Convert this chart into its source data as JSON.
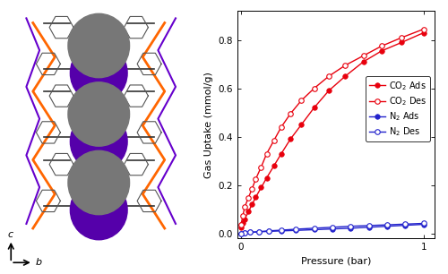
{
  "co2_ads_pressure": [
    0.0,
    0.01,
    0.02,
    0.04,
    0.06,
    0.08,
    0.11,
    0.14,
    0.18,
    0.22,
    0.27,
    0.33,
    0.4,
    0.48,
    0.57,
    0.67,
    0.77,
    0.88,
    1.0
  ],
  "co2_ads_uptake": [
    0.025,
    0.042,
    0.06,
    0.09,
    0.12,
    0.15,
    0.19,
    0.23,
    0.28,
    0.33,
    0.39,
    0.45,
    0.52,
    0.59,
    0.65,
    0.71,
    0.755,
    0.79,
    0.83
  ],
  "co2_des_pressure": [
    1.0,
    0.88,
    0.77,
    0.67,
    0.57,
    0.48,
    0.4,
    0.33,
    0.27,
    0.22,
    0.18,
    0.14,
    0.11,
    0.08,
    0.06,
    0.04,
    0.02,
    0.01,
    0.0
  ],
  "co2_des_uptake": [
    0.845,
    0.81,
    0.775,
    0.735,
    0.695,
    0.65,
    0.6,
    0.55,
    0.495,
    0.44,
    0.385,
    0.33,
    0.275,
    0.225,
    0.185,
    0.148,
    0.11,
    0.075,
    0.038
  ],
  "n2_ads_pressure": [
    0.0,
    0.02,
    0.05,
    0.1,
    0.15,
    0.22,
    0.3,
    0.4,
    0.5,
    0.6,
    0.7,
    0.8,
    0.9,
    1.0
  ],
  "n2_ads_uptake": [
    0.0,
    0.003,
    0.005,
    0.007,
    0.009,
    0.011,
    0.013,
    0.016,
    0.019,
    0.022,
    0.026,
    0.03,
    0.034,
    0.038
  ],
  "n2_des_pressure": [
    1.0,
    0.9,
    0.8,
    0.7,
    0.6,
    0.5,
    0.4,
    0.3,
    0.22,
    0.15,
    0.1,
    0.05,
    0.02,
    0.0
  ],
  "n2_des_uptake": [
    0.042,
    0.039,
    0.036,
    0.033,
    0.03,
    0.026,
    0.022,
    0.018,
    0.014,
    0.011,
    0.008,
    0.005,
    0.003,
    0.0
  ],
  "co2_color": "#e8000d",
  "n2_color": "#2222cc",
  "ylabel": "Gas Uptake (mmol/g)",
  "xlabel": "Pressure (bar)",
  "xlim": [
    -0.02,
    1.06
  ],
  "ylim": [
    -0.02,
    0.92
  ],
  "yticks": [
    0.0,
    0.2,
    0.4,
    0.6,
    0.8
  ],
  "xticks": [
    0,
    1
  ],
  "xtick_labels": [
    "0",
    "1"
  ],
  "legend_labels": [
    "CO$_2$ Ads",
    "CO$_2$ Des",
    "N$_2$ Ads",
    "N$_2$ Des"
  ],
  "marker_size": 4,
  "line_width": 1.0,
  "background_color": "#ffffff",
  "fig_width": 5.0,
  "fig_height": 3.06,
  "dpi": 100
}
